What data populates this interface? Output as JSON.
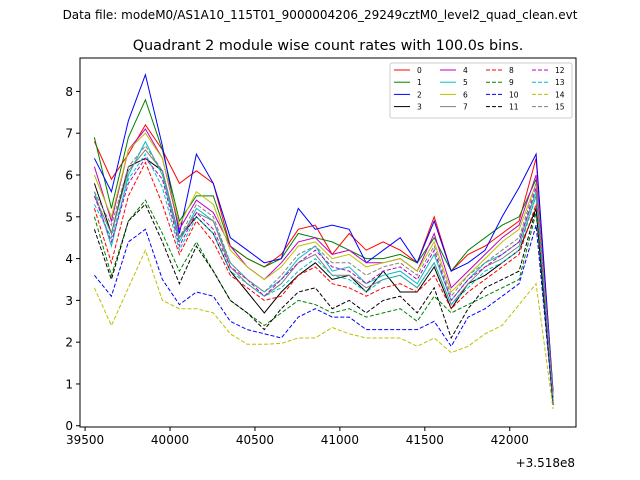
{
  "chart_data": {
    "type": "line",
    "suptitle": "Data file: modeM0/AS1A10_115T01_9000004206_29249cztM0_level2_quad_clean.evt",
    "title": "Quadrant 2 module wise count rates with 100.0s bins.",
    "xlabel": "",
    "ylabel": "",
    "x_offset_label": "+3.518e8",
    "xlim": [
      39470,
      42390
    ],
    "ylim": [
      -0.03,
      8.8
    ],
    "xticks": [
      "39500",
      "40000",
      "40500",
      "41000",
      "41500",
      "42000"
    ],
    "yticks": [
      "0",
      "1",
      "2",
      "3",
      "4",
      "5",
      "6",
      "7",
      "8"
    ],
    "x": [
      39555,
      39655,
      39755,
      39855,
      39955,
      40055,
      40155,
      40255,
      40355,
      40455,
      40555,
      40655,
      40755,
      40855,
      40955,
      41055,
      41155,
      41255,
      41355,
      41455,
      41555,
      41655,
      41755,
      41855,
      41955,
      42055,
      42155,
      42255
    ],
    "series": [
      {
        "name": "0",
        "color": "#ff0000",
        "dash": "solid",
        "values": [
          6.8,
          5.9,
          6.5,
          7.2,
          6.6,
          5.8,
          6.1,
          5.8,
          4.3,
          4.0,
          3.8,
          4.1,
          4.7,
          4.8,
          4.1,
          4.6,
          4.2,
          4.4,
          4.2,
          3.9,
          5.0,
          3.7,
          4.1,
          4.3,
          4.6,
          4.9,
          6.4,
          0.8
        ]
      },
      {
        "name": "1",
        "color": "#008000",
        "dash": "solid",
        "values": [
          6.9,
          5.2,
          6.9,
          7.8,
          6.6,
          4.9,
          5.5,
          5.5,
          4.3,
          4.0,
          3.8,
          4.0,
          4.6,
          4.5,
          4.4,
          4.2,
          4.0,
          4.0,
          4.1,
          3.9,
          4.5,
          3.7,
          4.2,
          4.5,
          4.8,
          5.0,
          5.9,
          0.7
        ]
      },
      {
        "name": "2",
        "color": "#0000ff",
        "dash": "solid",
        "values": [
          6.4,
          5.6,
          7.3,
          8.4,
          6.7,
          4.6,
          6.5,
          5.8,
          4.5,
          4.2,
          3.9,
          4.0,
          5.2,
          4.7,
          4.8,
          4.7,
          3.9,
          4.2,
          4.5,
          3.9,
          4.9,
          3.7,
          3.9,
          4.2,
          5.0,
          5.7,
          6.5,
          0.8
        ]
      },
      {
        "name": "3",
        "color": "#000000",
        "dash": "solid",
        "values": [
          5.8,
          4.6,
          6.2,
          6.4,
          6.1,
          4.5,
          5.0,
          4.6,
          3.7,
          3.2,
          2.7,
          3.2,
          3.6,
          3.9,
          3.5,
          3.6,
          3.2,
          3.7,
          3.2,
          3.2,
          3.8,
          2.8,
          3.4,
          3.6,
          3.9,
          4.2,
          5.2,
          0.6
        ]
      },
      {
        "name": "4",
        "color": "#bf00bf",
        "dash": "solid",
        "values": [
          6.2,
          4.9,
          6.6,
          7.1,
          6.4,
          4.7,
          5.4,
          5.1,
          4.3,
          3.8,
          3.5,
          3.9,
          4.4,
          4.5,
          4.1,
          4.2,
          3.9,
          3.9,
          4.0,
          3.7,
          4.6,
          3.3,
          3.7,
          4.1,
          4.5,
          4.8,
          6.0,
          0.7
        ]
      },
      {
        "name": "5",
        "color": "#00bfbf",
        "dash": "solid",
        "values": [
          5.6,
          4.3,
          6.0,
          6.8,
          6.0,
          4.4,
          5.2,
          4.9,
          3.9,
          3.5,
          3.2,
          3.5,
          4.0,
          4.3,
          3.7,
          3.8,
          3.4,
          3.6,
          3.7,
          3.4,
          4.1,
          3.0,
          3.5,
          3.9,
          4.1,
          4.4,
          5.6,
          0.6
        ]
      },
      {
        "name": "6",
        "color": "#bfbf00",
        "dash": "solid",
        "values": [
          6.0,
          5.0,
          6.6,
          7.0,
          6.4,
          4.8,
          5.6,
          5.3,
          4.2,
          3.8,
          3.5,
          3.8,
          4.3,
          4.4,
          4.0,
          4.1,
          3.8,
          3.9,
          4.0,
          3.7,
          4.4,
          3.2,
          3.6,
          4.0,
          4.4,
          4.7,
          5.8,
          0.7
        ]
      },
      {
        "name": "7",
        "color": "#808080",
        "dash": "solid",
        "values": [
          5.5,
          4.6,
          6.1,
          6.6,
          6.1,
          4.5,
          5.1,
          4.9,
          3.8,
          3.4,
          3.1,
          3.4,
          3.9,
          4.1,
          3.6,
          3.6,
          3.3,
          3.5,
          3.6,
          3.3,
          3.9,
          2.9,
          3.4,
          3.8,
          4.0,
          4.3,
          5.5,
          0.6
        ]
      },
      {
        "name": "8",
        "color": "#ff0000",
        "dash": "dashed",
        "values": [
          5.2,
          3.9,
          5.5,
          6.3,
          5.3,
          4.1,
          4.9,
          4.4,
          3.6,
          3.3,
          3.0,
          3.1,
          3.6,
          3.8,
          3.4,
          3.3,
          3.1,
          3.3,
          3.4,
          3.2,
          3.6,
          2.8,
          3.2,
          3.5,
          3.8,
          4.1,
          5.3,
          0.6
        ]
      },
      {
        "name": "9",
        "color": "#008000",
        "dash": "dashed",
        "values": [
          5.0,
          3.6,
          4.9,
          5.4,
          4.6,
          3.7,
          4.4,
          3.7,
          3.0,
          2.7,
          2.4,
          2.7,
          3.0,
          2.9,
          2.7,
          2.8,
          2.6,
          2.7,
          2.8,
          2.5,
          3.1,
          2.7,
          2.9,
          3.1,
          3.3,
          3.5,
          5.1,
          0.5
        ]
      },
      {
        "name": "10",
        "color": "#0000ff",
        "dash": "dashed",
        "values": [
          3.6,
          3.1,
          4.4,
          4.7,
          3.5,
          2.9,
          3.2,
          3.1,
          2.5,
          2.3,
          2.2,
          2.1,
          2.6,
          2.8,
          2.6,
          2.6,
          2.3,
          2.3,
          2.3,
          2.3,
          2.5,
          1.9,
          2.6,
          2.8,
          3.1,
          3.4,
          4.8,
          0.5
        ]
      },
      {
        "name": "11",
        "color": "#000000",
        "dash": "dashed",
        "values": [
          4.7,
          3.5,
          4.9,
          5.3,
          4.4,
          3.4,
          4.3,
          3.7,
          3.0,
          2.7,
          2.3,
          2.8,
          3.2,
          3.3,
          2.8,
          3.0,
          2.7,
          3.0,
          3.1,
          2.7,
          3.3,
          2.1,
          2.8,
          3.3,
          3.5,
          3.7,
          5.2,
          0.5
        ]
      },
      {
        "name": "12",
        "color": "#bf00bf",
        "dash": "dashed",
        "values": [
          5.5,
          4.4,
          5.8,
          6.4,
          5.9,
          4.3,
          5.1,
          4.7,
          3.8,
          3.5,
          3.1,
          3.5,
          3.9,
          4.2,
          3.8,
          3.7,
          3.4,
          3.7,
          3.8,
          3.5,
          4.2,
          3.0,
          3.5,
          3.8,
          4.1,
          4.4,
          5.7,
          0.6
        ]
      },
      {
        "name": "13",
        "color": "#00bfbf",
        "dash": "dashed",
        "values": [
          5.3,
          4.5,
          5.9,
          6.5,
          5.7,
          4.2,
          5.0,
          4.6,
          3.7,
          3.4,
          3.1,
          3.3,
          3.7,
          4.0,
          3.6,
          3.5,
          3.2,
          3.5,
          3.6,
          3.3,
          3.9,
          2.9,
          3.3,
          3.7,
          3.9,
          4.2,
          5.5,
          0.6
        ]
      },
      {
        "name": "14",
        "color": "#bfbf00",
        "dash": "dashed",
        "values": [
          3.3,
          2.4,
          3.3,
          4.2,
          3.0,
          2.8,
          2.8,
          2.7,
          2.2,
          1.95,
          1.95,
          1.97,
          2.1,
          2.1,
          2.35,
          2.2,
          2.1,
          2.1,
          2.1,
          1.9,
          2.1,
          1.75,
          1.9,
          2.2,
          2.4,
          2.9,
          3.4,
          0.4
        ]
      },
      {
        "name": "15",
        "color": "#808080",
        "dash": "dashed",
        "values": [
          5.6,
          4.8,
          6.2,
          6.7,
          6.1,
          4.5,
          5.3,
          5.0,
          3.9,
          3.5,
          3.2,
          3.6,
          4.1,
          4.3,
          3.9,
          3.9,
          3.6,
          3.8,
          3.9,
          3.6,
          4.3,
          3.1,
          3.6,
          3.9,
          4.2,
          4.5,
          5.8,
          0.7
        ]
      }
    ],
    "legend": {
      "placement": "top-right",
      "columns": 4
    }
  }
}
